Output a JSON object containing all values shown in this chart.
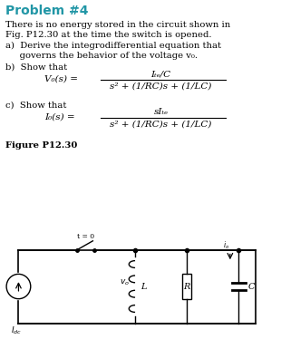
{
  "title": "Problem #4",
  "title_color": "#2196a6",
  "title_fontsize": 10,
  "bg_color": "#ffffff",
  "text_color": "#000000",
  "body_line1": "There is no energy stored in the circuit shown in",
  "body_line2": "Fig. P12.30 at the time the switch is opened.",
  "parta_line1": "a)  Derive the integrodifferential equation that",
  "parta_line2": "     governs the behavior of the voltage v₀.",
  "partb": "b)  Show that",
  "eq_b_lhs": "V₀(s) =",
  "eq_b_num": "Iₜₑ/C",
  "eq_b_den": "s² + (1/RC)s + (1/LC)",
  "partc": "c)  Show that",
  "eq_c_lhs": "I₀(s) =",
  "eq_c_num": "sIₜₑ",
  "eq_c_den": "s² + (1/RC)s + (1/LC)",
  "fig_label": "Figure P12.30",
  "font_size": 7.2,
  "eq_font_size": 7.5
}
